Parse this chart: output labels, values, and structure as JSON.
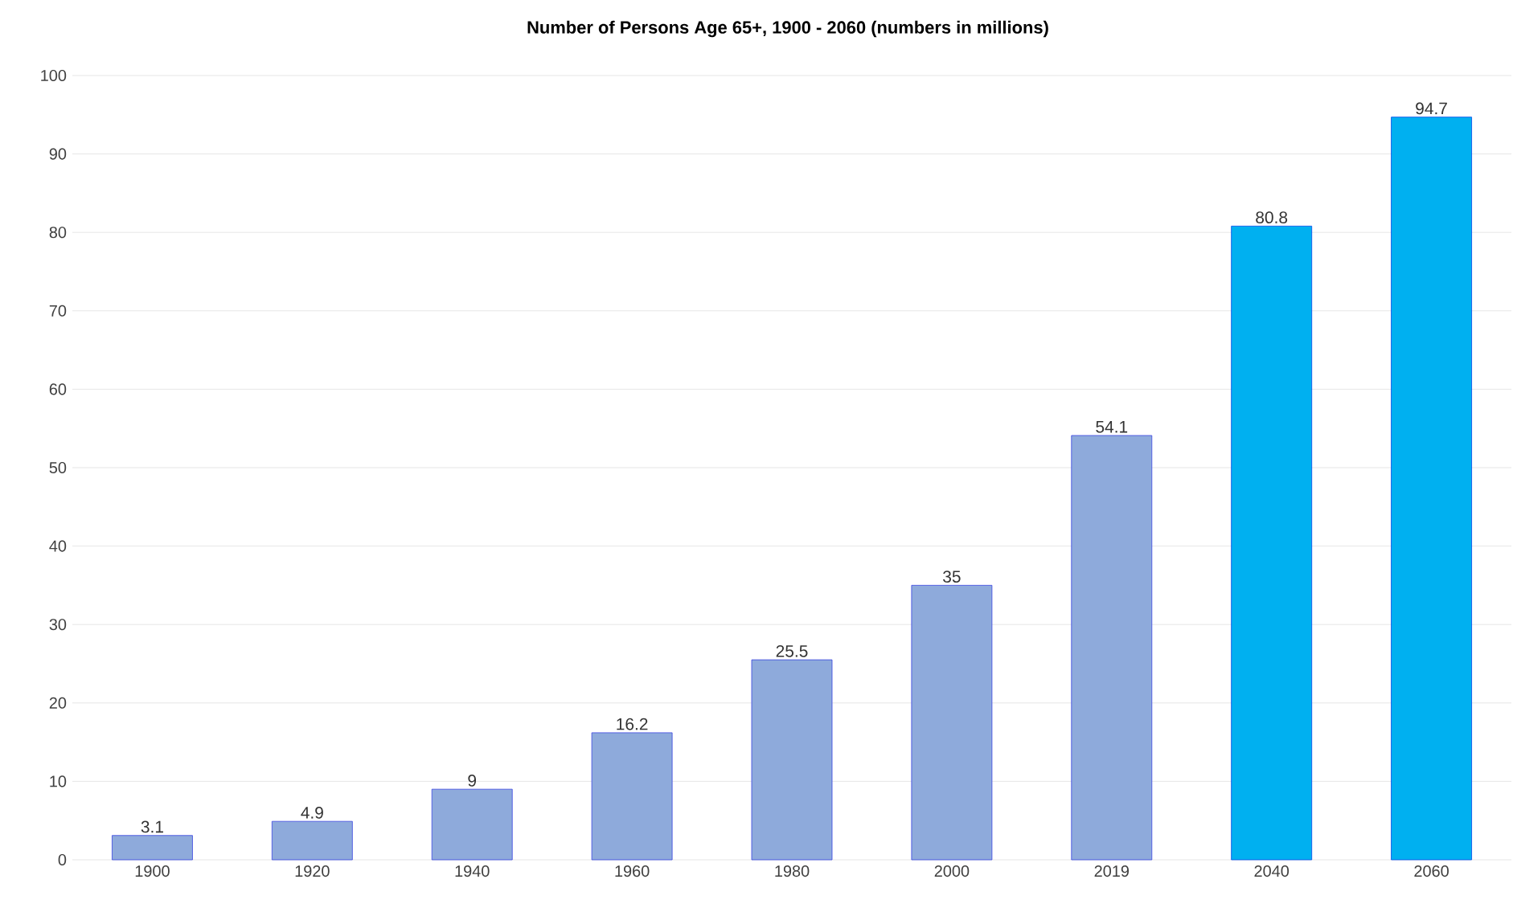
{
  "chart_data": {
    "type": "bar",
    "title": "Number of Persons Age 65+, 1900 - 2060 (numbers in millions)",
    "categories": [
      "1900",
      "1920",
      "1940",
      "1960",
      "1980",
      "2000",
      "2019",
      "2040",
      "2060"
    ],
    "values": [
      3.1,
      4.9,
      9,
      16.2,
      25.5,
      35,
      54.1,
      80.8,
      94.7
    ],
    "colors": [
      "#8eaadb",
      "#8eaadb",
      "#8eaadb",
      "#8eaadb",
      "#8eaadb",
      "#8eaadb",
      "#8eaadb",
      "#00b0f0",
      "#00b0f0"
    ],
    "ylim": [
      0,
      100
    ],
    "yticks": [
      0,
      10,
      20,
      30,
      40,
      50,
      60,
      70,
      80,
      90,
      100
    ],
    "grid": "y",
    "data_labels": true
  }
}
